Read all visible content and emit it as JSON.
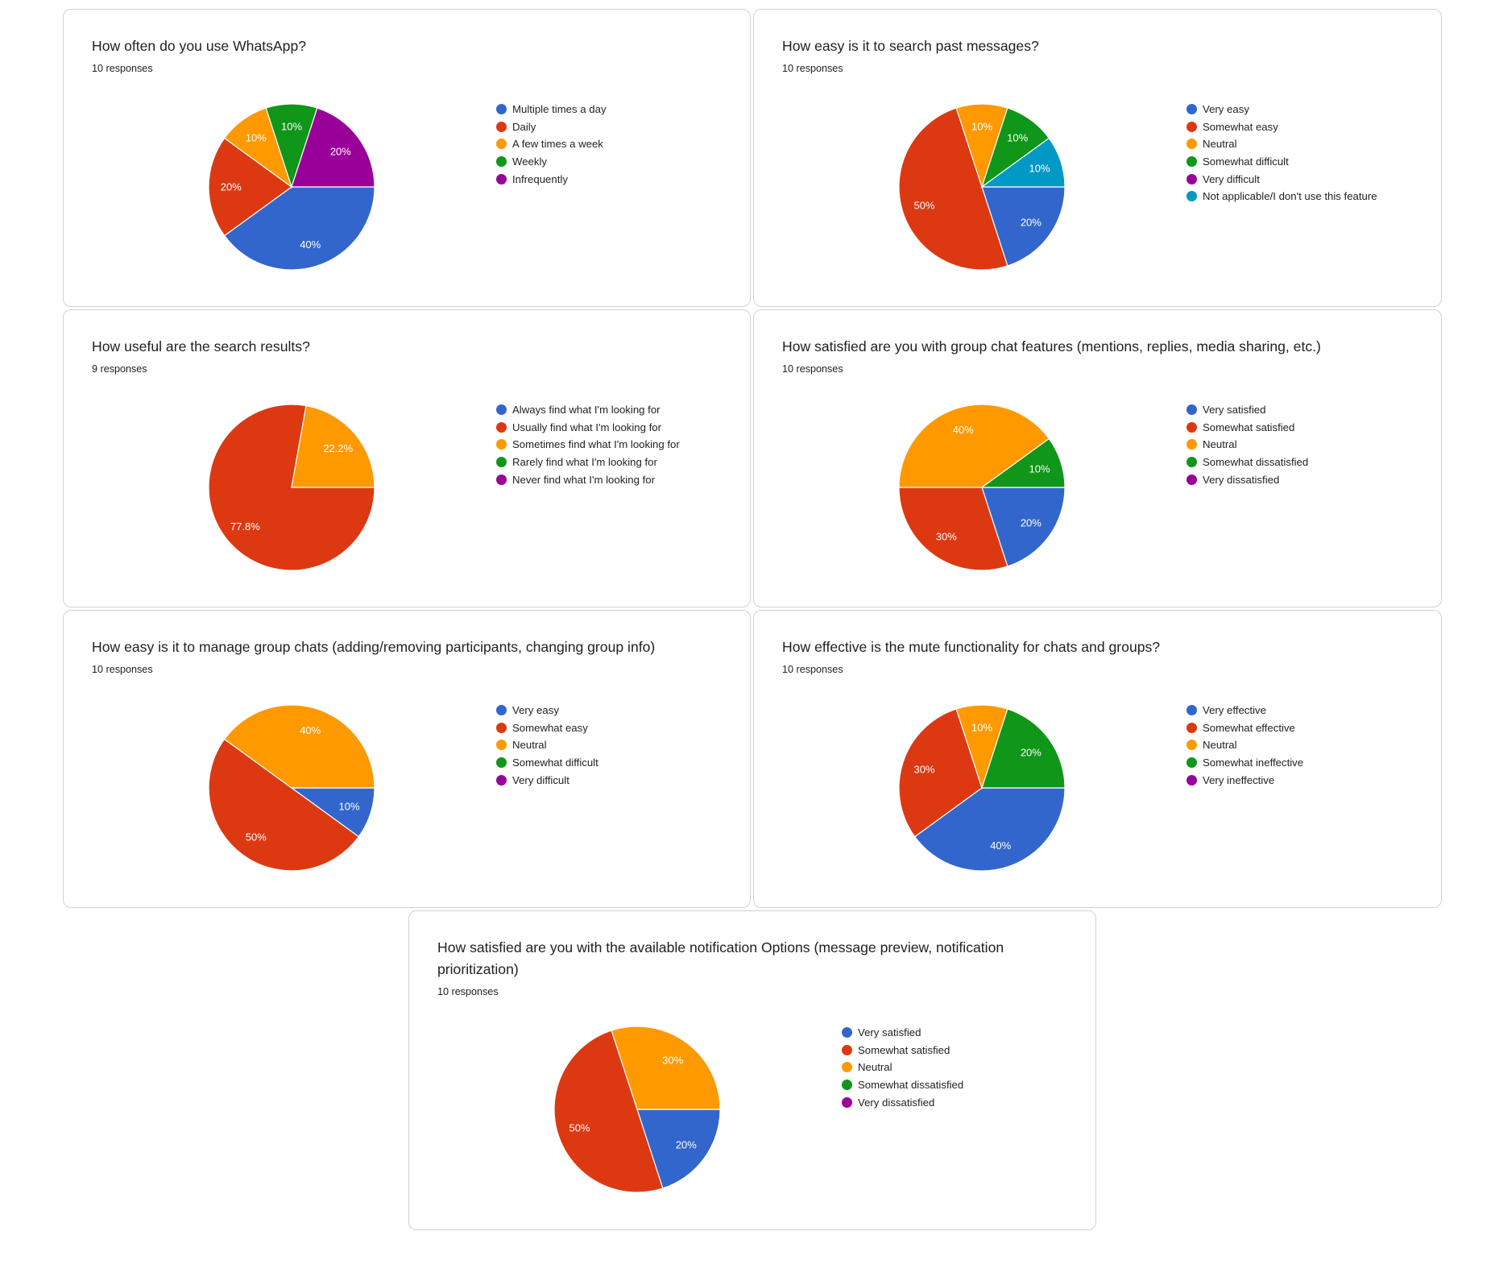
{
  "colors": {
    "blue": "#3366cc",
    "red": "#dc3912",
    "orange": "#ff9900",
    "green": "#109618",
    "purple": "#990099",
    "teal": "#0099c6"
  },
  "charts": [
    {
      "title": "How often do you use WhatsApp?",
      "responses": "10 responses",
      "legend": [
        "Multiple times a day",
        "Daily",
        "A few times a week",
        "Weekly",
        "Infrequently"
      ],
      "slice_labels": [
        "40%",
        "20%",
        "10%",
        "10%",
        "20%"
      ]
    },
    {
      "title": "How easy is it to search past messages?",
      "responses": "10 responses",
      "legend": [
        "Very easy",
        "Somewhat easy",
        "Neutral",
        "Somewhat difficult",
        "Very difficult",
        "Not applicable/I don't use this feature"
      ],
      "slice_labels": [
        "20%",
        "50%",
        "10%",
        "10%",
        "",
        "10%"
      ]
    },
    {
      "title": "How useful are the search results?",
      "responses": "9 responses",
      "legend": [
        "Always find what I'm looking for",
        "Usually find what I'm looking for",
        "Sometimes find what I'm looking for",
        "Rarely find what I'm looking for",
        "Never find what I'm looking for"
      ],
      "slice_labels": [
        "",
        "77.8%",
        "22.2%",
        "",
        ""
      ]
    },
    {
      "title": "How satisfied are you with group chat features (mentions, replies, media sharing, etc.)",
      "responses": "10 responses",
      "legend": [
        "Very satisfied",
        "Somewhat satisfied",
        "Neutral",
        "Somewhat dissatisfied",
        "Very dissatisfied"
      ],
      "slice_labels": [
        "20%",
        "30%",
        "40%",
        "10%",
        ""
      ]
    },
    {
      "title": "How easy is it to manage group chats (adding/removing participants, changing group info)",
      "responses": "10 responses",
      "legend": [
        "Very easy",
        "Somewhat easy",
        "Neutral",
        "Somewhat difficult",
        "Very difficult"
      ],
      "slice_labels": [
        "10%",
        "50%",
        "40%",
        "",
        ""
      ]
    },
    {
      "title": "How effective is the mute functionality for chats and groups?",
      "responses": "10 responses",
      "legend": [
        "Very effective",
        "Somewhat effective",
        "Neutral",
        "Somewhat ineffective",
        "Very ineffective"
      ],
      "slice_labels": [
        "40%",
        "30%",
        "10%",
        "20%",
        ""
      ]
    },
    {
      "title": "How satisfied are you with the available notification Options (message preview, notification prioritization)",
      "responses": "10 responses",
      "legend": [
        "Very satisfied",
        "Somewhat satisfied",
        "Neutral",
        "Somewhat dissatisfied",
        "Very dissatisfied"
      ],
      "slice_labels": [
        "20%",
        "50%",
        "30%",
        "",
        ""
      ]
    }
  ],
  "chart_data": [
    {
      "type": "pie",
      "title": "How often do you use WhatsApp?",
      "categories": [
        "Multiple times a day",
        "Daily",
        "A few times a week",
        "Weekly",
        "Infrequently"
      ],
      "values": [
        40,
        20,
        10,
        10,
        20
      ],
      "colors": [
        "#3366cc",
        "#dc3912",
        "#ff9900",
        "#109618",
        "#990099"
      ],
      "legend_position": "right"
    },
    {
      "type": "pie",
      "title": "How easy is it to search past messages?",
      "categories": [
        "Very easy",
        "Somewhat easy",
        "Neutral",
        "Somewhat difficult",
        "Very difficult",
        "Not applicable/I don't use this feature"
      ],
      "values": [
        20,
        50,
        10,
        10,
        0,
        10
      ],
      "colors": [
        "#3366cc",
        "#dc3912",
        "#ff9900",
        "#109618",
        "#990099",
        "#0099c6"
      ],
      "legend_position": "right"
    },
    {
      "type": "pie",
      "title": "How useful are the search results?",
      "categories": [
        "Always find what I'm looking for",
        "Usually find what I'm looking for",
        "Sometimes find what I'm looking for",
        "Rarely find what I'm looking for",
        "Never find what I'm looking for"
      ],
      "values": [
        0,
        77.8,
        22.2,
        0,
        0
      ],
      "colors": [
        "#3366cc",
        "#dc3912",
        "#ff9900",
        "#109618",
        "#990099"
      ],
      "legend_position": "right"
    },
    {
      "type": "pie",
      "title": "How satisfied are you with group chat features (mentions, replies, media sharing, etc.)",
      "categories": [
        "Very satisfied",
        "Somewhat satisfied",
        "Neutral",
        "Somewhat dissatisfied",
        "Very dissatisfied"
      ],
      "values": [
        20,
        30,
        40,
        10,
        0
      ],
      "colors": [
        "#3366cc",
        "#dc3912",
        "#ff9900",
        "#109618",
        "#990099"
      ],
      "legend_position": "right"
    },
    {
      "type": "pie",
      "title": "How easy is it to manage group chats (adding/removing participants, changing group info)",
      "categories": [
        "Very easy",
        "Somewhat easy",
        "Neutral",
        "Somewhat difficult",
        "Very difficult"
      ],
      "values": [
        10,
        50,
        40,
        0,
        0
      ],
      "colors": [
        "#3366cc",
        "#dc3912",
        "#ff9900",
        "#109618",
        "#990099"
      ],
      "legend_position": "right"
    },
    {
      "type": "pie",
      "title": "How effective is the mute functionality for chats and groups?",
      "categories": [
        "Very effective",
        "Somewhat effective",
        "Neutral",
        "Somewhat ineffective",
        "Very ineffective"
      ],
      "values": [
        40,
        30,
        10,
        20,
        0
      ],
      "colors": [
        "#3366cc",
        "#dc3912",
        "#ff9900",
        "#109618",
        "#990099"
      ],
      "legend_position": "right"
    },
    {
      "type": "pie",
      "title": "How satisfied are you with the available notification Options (message preview, notification prioritization)",
      "categories": [
        "Very satisfied",
        "Somewhat satisfied",
        "Neutral",
        "Somewhat dissatisfied",
        "Very dissatisfied"
      ],
      "values": [
        20,
        50,
        30,
        0,
        0
      ],
      "colors": [
        "#3366cc",
        "#dc3912",
        "#ff9900",
        "#109618",
        "#990099"
      ],
      "legend_position": "right"
    }
  ]
}
